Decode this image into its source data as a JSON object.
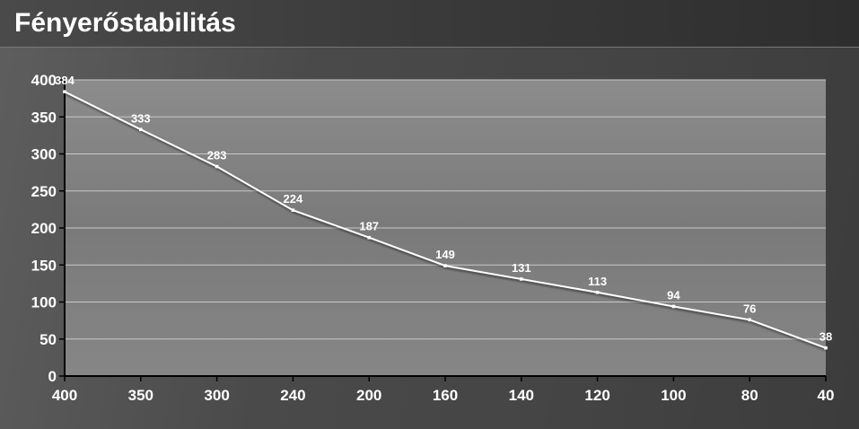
{
  "header": {
    "title": "Fényerőstabilitás"
  },
  "colors": {
    "line": "#ffffff",
    "grid": "#c8c8c8",
    "plot_background": "#808080",
    "text": "#ffffff"
  },
  "chart_data": {
    "type": "line",
    "title": "Fényerőstabilitás",
    "categories": [
      "400",
      "350",
      "300",
      "240",
      "200",
      "160",
      "140",
      "120",
      "100",
      "80",
      "40"
    ],
    "series": [
      {
        "values": [
          384,
          333,
          283,
          224,
          187,
          149,
          131,
          113,
          94,
          76,
          38
        ],
        "labels": [
          "384",
          "333",
          "283",
          "224",
          "187",
          "149",
          "131",
          "113",
          "94",
          "76",
          "38"
        ]
      }
    ],
    "xlabel": "",
    "ylabel": "",
    "ylim": [
      0,
      400
    ],
    "yticks": [
      0,
      50,
      100,
      150,
      200,
      250,
      300,
      350,
      400
    ],
    "ytick_labels": [
      "0",
      "50",
      "100",
      "150",
      "200",
      "250",
      "300",
      "350",
      "400"
    ],
    "grid": true,
    "legend": "none",
    "markers": true,
    "data_labels": true
  }
}
